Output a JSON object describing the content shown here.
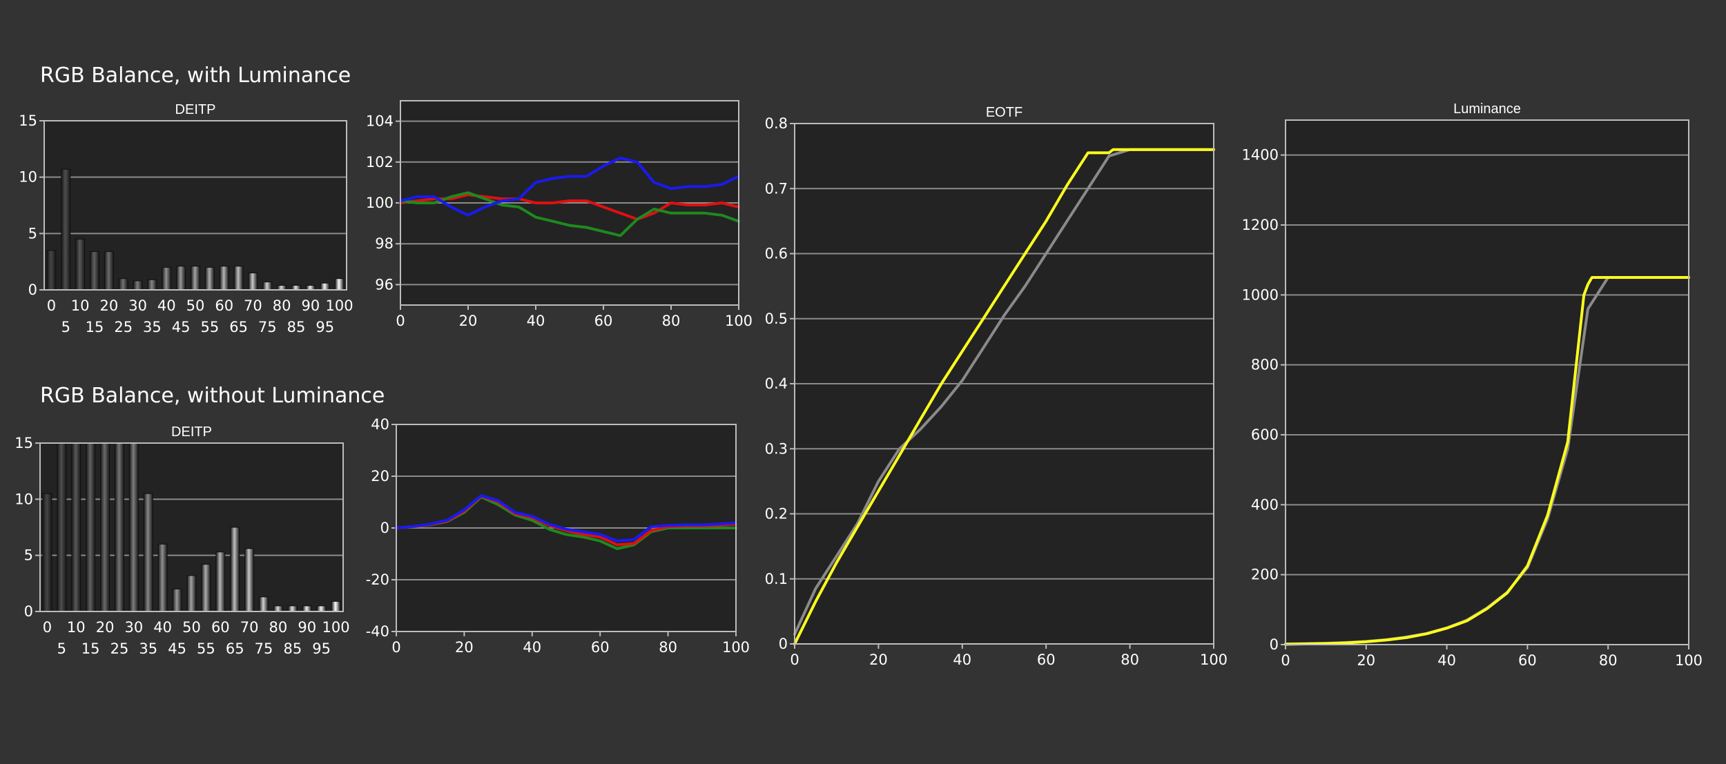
{
  "headings": {
    "with_luminance": "RGB Balance, with Luminance",
    "without_luminance": "RGB Balance, without Luminance"
  },
  "colors": {
    "background": "#333333",
    "plot_area": "#232323",
    "grid": "#8c8c8c",
    "red": "#e01010",
    "green": "#1e8a1e",
    "blue": "#1a1af0",
    "target": "#8a8a8a",
    "measured": "#ffff1e"
  },
  "chart_data": [
    {
      "id": "deitp_with_lum",
      "type": "bar",
      "title": "DEITP",
      "categories": [
        "0",
        "5",
        "10",
        "15",
        "20",
        "25",
        "30",
        "35",
        "40",
        "45",
        "50",
        "55",
        "60",
        "65",
        "70",
        "75",
        "80",
        "85",
        "90",
        "95",
        "100"
      ],
      "values": [
        3.5,
        10.7,
        4.5,
        3.4,
        3.4,
        1.0,
        0.8,
        0.9,
        2.0,
        2.1,
        2.1,
        2.0,
        2.1,
        2.1,
        1.5,
        0.7,
        0.4,
        0.4,
        0.4,
        0.6,
        1.0
      ],
      "ylim": [
        0,
        15
      ],
      "yticks": [
        "0",
        "5",
        "10",
        "15"
      ],
      "xticks_top": [
        "0",
        "10",
        "20",
        "30",
        "40",
        "50",
        "60",
        "70",
        "80",
        "90",
        "100"
      ],
      "xticks_bottom": [
        "5",
        "15",
        "25",
        "35",
        "45",
        "55",
        "65",
        "75",
        "85",
        "95"
      ]
    },
    {
      "id": "rgb_with_lum",
      "type": "line",
      "x": [
        0,
        5,
        10,
        15,
        20,
        25,
        30,
        35,
        40,
        45,
        50,
        55,
        60,
        65,
        70,
        75,
        80,
        85,
        90,
        95,
        100
      ],
      "ylim": [
        95,
        105
      ],
      "yticks": [
        "96",
        "98",
        "100",
        "102",
        "104"
      ],
      "xticks": [
        "0",
        "20",
        "40",
        "60",
        "80",
        "100"
      ],
      "series": [
        {
          "color": "red",
          "values": [
            100,
            100.1,
            100.2,
            100.2,
            100.4,
            100.3,
            100.2,
            100.2,
            100.0,
            100.0,
            100.1,
            100.1,
            99.8,
            99.5,
            99.2,
            99.5,
            100.0,
            99.9,
            99.9,
            100.0,
            99.8
          ]
        },
        {
          "color": "green",
          "values": [
            100.1,
            100.0,
            100.0,
            100.3,
            100.5,
            100.2,
            99.9,
            99.8,
            99.3,
            99.1,
            98.9,
            98.8,
            98.6,
            98.4,
            99.2,
            99.7,
            99.5,
            99.5,
            99.5,
            99.4,
            99.1
          ]
        },
        {
          "color": "blue",
          "values": [
            100.1,
            100.3,
            100.3,
            99.8,
            99.4,
            99.8,
            100.1,
            100.2,
            101.0,
            101.2,
            101.3,
            101.3,
            101.8,
            102.2,
            102.0,
            101.0,
            100.7,
            100.8,
            100.8,
            100.9,
            101.3
          ]
        }
      ]
    },
    {
      "id": "deitp_without_lum",
      "type": "bar",
      "title": "DEITP",
      "categories": [
        "0",
        "5",
        "10",
        "15",
        "20",
        "25",
        "30",
        "35",
        "40",
        "45",
        "50",
        "55",
        "60",
        "65",
        "70",
        "75",
        "80",
        "85",
        "90",
        "95",
        "100"
      ],
      "values": [
        10.5,
        15,
        15,
        15,
        15,
        15,
        15,
        10.5,
        6.0,
        2.0,
        3.2,
        4.2,
        5.3,
        7.5,
        5.6,
        1.3,
        0.5,
        0.5,
        0.5,
        0.5,
        0.9
      ],
      "ylim": [
        0,
        15
      ],
      "yticks": [
        "0",
        "5",
        "10",
        "15"
      ],
      "xticks_top": [
        "0",
        "10",
        "20",
        "30",
        "40",
        "50",
        "60",
        "70",
        "80",
        "90",
        "100"
      ],
      "xticks_bottom": [
        "5",
        "15",
        "25",
        "35",
        "45",
        "55",
        "65",
        "75",
        "85",
        "95"
      ]
    },
    {
      "id": "rgb_without_lum",
      "type": "line",
      "x": [
        0,
        5,
        10,
        15,
        20,
        25,
        30,
        35,
        40,
        45,
        50,
        55,
        60,
        65,
        70,
        75,
        80,
        85,
        90,
        95,
        100
      ],
      "ylim": [
        -40,
        40
      ],
      "yticks": [
        "-40",
        "-20",
        "0",
        "20",
        "40"
      ],
      "xticks": [
        "0",
        "20",
        "40",
        "60",
        "80",
        "100"
      ],
      "series": [
        {
          "color": "green",
          "values": [
            0,
            0.5,
            1.2,
            2.5,
            6.0,
            12.0,
            9.0,
            5.0,
            3.0,
            -0.5,
            -2.5,
            -3.5,
            -5.0,
            -8.0,
            -6.5,
            -1.5,
            0,
            0,
            0,
            0,
            0
          ]
        },
        {
          "color": "red",
          "values": [
            0,
            0.5,
            1.3,
            2.7,
            6.5,
            12.3,
            10.0,
            5.5,
            4.0,
            1.0,
            -1.0,
            -2.5,
            -3.5,
            -6.5,
            -6.0,
            -1.0,
            0.5,
            0.8,
            0.8,
            1.0,
            1.5
          ]
        },
        {
          "color": "blue",
          "values": [
            0,
            0.6,
            1.5,
            3.0,
            7.0,
            12.5,
            10.5,
            6.0,
            4.5,
            1.5,
            -0.5,
            -1.5,
            -2.5,
            -5.0,
            -4.5,
            0.5,
            1.0,
            1.2,
            1.2,
            1.5,
            2.0
          ]
        }
      ]
    },
    {
      "id": "eotf",
      "type": "line",
      "title": "EOTF",
      "ylim": [
        0,
        0.8
      ],
      "yticks": [
        "0",
        "0.1",
        "0.2",
        "0.3",
        "0.4",
        "0.5",
        "0.6",
        "0.7",
        "0.8"
      ],
      "xticks": [
        "0",
        "20",
        "40",
        "60",
        "80",
        "100"
      ],
      "series": [
        {
          "color": "gray",
          "x": [
            0,
            5,
            10,
            15,
            20,
            25,
            30,
            35,
            40,
            45,
            50,
            55,
            60,
            65,
            70,
            75,
            80,
            100
          ],
          "values": [
            0.015,
            0.085,
            0.135,
            0.185,
            0.25,
            0.3,
            0.33,
            0.365,
            0.405,
            0.455,
            0.505,
            0.55,
            0.6,
            0.65,
            0.7,
            0.75,
            0.76,
            0.76
          ]
        },
        {
          "color": "yellow",
          "x": [
            0,
            5,
            10,
            15,
            20,
            25,
            30,
            35,
            40,
            45,
            50,
            55,
            60,
            65,
            70,
            75,
            76,
            80,
            100
          ],
          "values": [
            0.0,
            0.065,
            0.125,
            0.18,
            0.235,
            0.29,
            0.345,
            0.4,
            0.45,
            0.5,
            0.55,
            0.6,
            0.65,
            0.705,
            0.755,
            0.755,
            0.76,
            0.76,
            0.76
          ]
        }
      ]
    },
    {
      "id": "luminance",
      "type": "line",
      "title": "Luminance",
      "ylim": [
        0,
        1500
      ],
      "yticks": [
        "0",
        "200",
        "400",
        "600",
        "800",
        "1000",
        "1200",
        "1400"
      ],
      "xticks": [
        "0",
        "20",
        "40",
        "60",
        "80",
        "100"
      ],
      "series": [
        {
          "color": "gray",
          "x": [
            0,
            5,
            10,
            15,
            20,
            25,
            30,
            35,
            40,
            45,
            50,
            55,
            60,
            65,
            70,
            75,
            80,
            100
          ],
          "values": [
            2,
            3,
            4,
            6,
            9,
            14,
            22,
            32,
            48,
            70,
            105,
            150,
            220,
            360,
            560,
            960,
            1050,
            1050
          ]
        },
        {
          "color": "yellow",
          "x": [
            0,
            5,
            10,
            15,
            20,
            25,
            30,
            35,
            40,
            45,
            50,
            55,
            60,
            65,
            70,
            74,
            75,
            76,
            80,
            100
          ],
          "values": [
            1,
            2,
            3,
            5,
            8,
            13,
            20,
            31,
            47,
            68,
            103,
            148,
            225,
            370,
            580,
            1000,
            1030,
            1050,
            1050,
            1050
          ]
        }
      ]
    }
  ]
}
